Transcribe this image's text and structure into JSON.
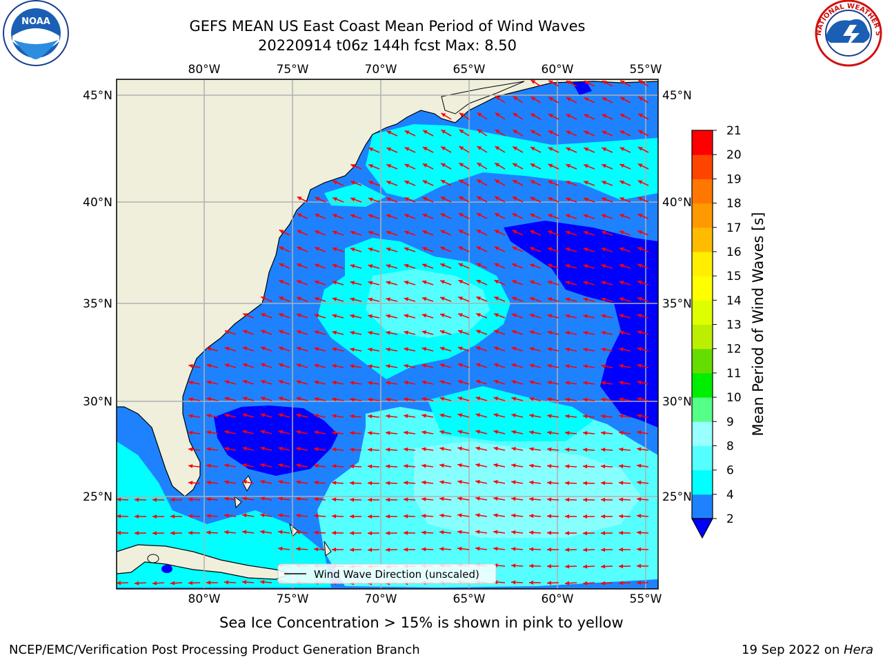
{
  "title": {
    "line1": "GEFS MEAN US East Coast Mean Period of Wind Waves",
    "line2": "20220914 t06z 144h fcst   Max: 8.50"
  },
  "logos": {
    "left": "NOAA",
    "right": "NATIONAL WEATHER SERVICE"
  },
  "map": {
    "lon_ticks": [
      "80°W",
      "75°W",
      "70°W",
      "65°W",
      "60°W",
      "55°W"
    ],
    "lat_ticks": [
      "45°N",
      "40°N",
      "35°N",
      "30°N",
      "25°N"
    ],
    "legend_label": "Wind Wave Direction (unscaled)",
    "colors": {
      "land": "#efefdc",
      "ocean_2_4": "#1e82ff",
      "ocean_4_6": "#00ffff",
      "ocean_6_8": "#55ffff",
      "ocean_below": "#0000ff",
      "arrow": "#ff0000"
    }
  },
  "colorbar": {
    "label": "Mean Period of Wind Waves [s]",
    "ticks": [
      "2",
      "4",
      "6",
      "8",
      "9",
      "10",
      "11",
      "12",
      "13",
      "14",
      "15",
      "16",
      "17",
      "18",
      "19",
      "20",
      "21"
    ],
    "colors": [
      "#1e82ff",
      "#00ffff",
      "#55ffff",
      "#99ffff",
      "#55ff88",
      "#00ee00",
      "#66dd00",
      "#bbee00",
      "#ddff00",
      "#ffff00",
      "#ffee00",
      "#ffbb00",
      "#ff9900",
      "#ff7700",
      "#ff4400",
      "#ff0000"
    ],
    "under_color": "#0000ff"
  },
  "subcaption": "Sea Ice Concentration > 15% is shown in pink to yellow",
  "footer": {
    "left": "NCEP/EMC/Verification Post Processing Product Generation Branch",
    "date": "19 Sep 2022 on ",
    "host": "Hera"
  }
}
